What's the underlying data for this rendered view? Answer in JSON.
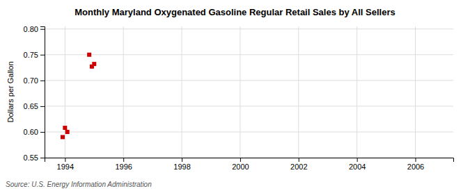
{
  "chart_data": {
    "type": "scatter",
    "title": "Monthly Maryland Oxygenated Gasoline Regular Retail Sales by All Sellers",
    "ylabel": "Dollars per Gallon",
    "annotations": [
      "Source: U.S. Energy Information Administration"
    ],
    "x": [
      1993.92,
      1994.0,
      1994.08,
      1994.83,
      1994.92,
      1995.0
    ],
    "values": [
      0.59,
      0.608,
      0.6,
      0.75,
      0.727,
      0.732
    ],
    "color": "#cc0000",
    "marker": "square",
    "xlim": [
      1993.3,
      2007.3
    ],
    "ylim": [
      0.55,
      0.805
    ],
    "xticks": [
      1994,
      1996,
      1998,
      2000,
      2002,
      2004,
      2006
    ],
    "yticks": [
      0.55,
      {
        "value": 0.6,
        "label": "0.60"
      },
      0.65,
      {
        "value": 0.7,
        "label": "0.70"
      },
      0.75,
      {
        "value": 0.8,
        "label": "0.80"
      }
    ],
    "grid": true
  }
}
